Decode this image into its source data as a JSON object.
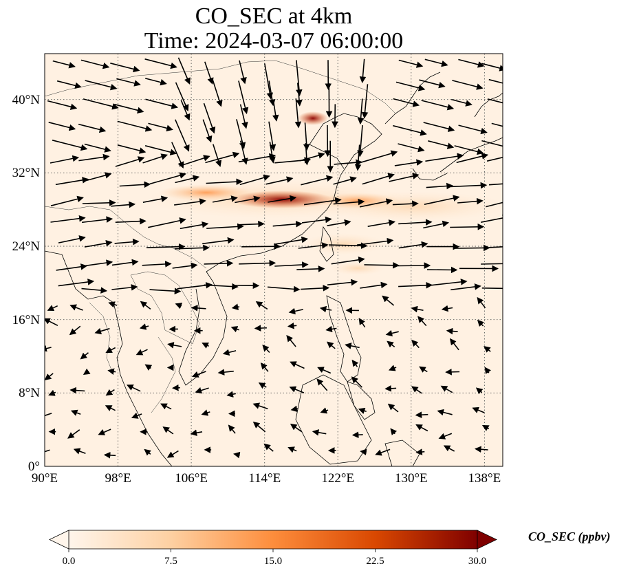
{
  "title": {
    "line1": "CO_SEC at 4km",
    "line2": "Time: 2024-03-07 06:00:00"
  },
  "axes": {
    "lon_ticks": [
      "90°E",
      "98°E",
      "106°E",
      "114°E",
      "122°E",
      "130°E",
      "138°E"
    ],
    "lat_ticks": [
      "0°",
      "8°N",
      "16°N",
      "24°N",
      "32°N",
      "40°N"
    ],
    "lon_range": [
      90,
      140
    ],
    "lat_range": [
      0,
      45
    ],
    "grid": "dotted"
  },
  "colorbar": {
    "label": "CO_SEC (ppbv)",
    "ticks": [
      "0.0",
      "7.5",
      "15.0",
      "22.5",
      "30.0"
    ],
    "range": [
      0,
      30
    ],
    "extend": "both",
    "colormap": [
      "#fff5eb",
      "#fdd0a2",
      "#fd8d3c",
      "#d94801",
      "#7f0000"
    ]
  },
  "map_layers": [
    "coastlines",
    "country-borders",
    "wind-vectors",
    "concentration-field"
  ]
}
